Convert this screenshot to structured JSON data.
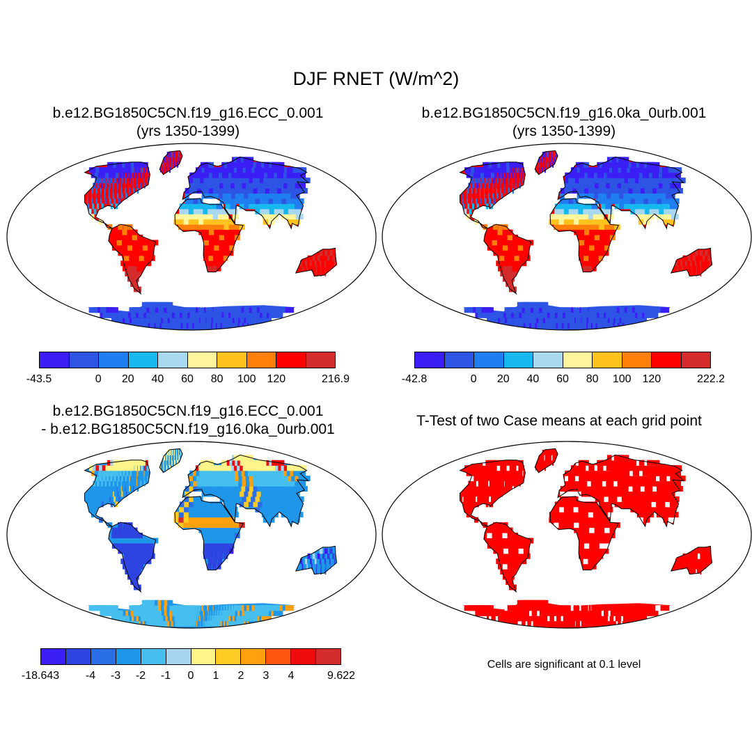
{
  "main_title": "DJF RNET (W/m^2)",
  "panels": [
    {
      "title_line1": "b.e12.BG1850C5CN.f19_g16.ECC_0.001",
      "title_line2": "(yrs 1350-1399)",
      "colorbar": {
        "colors": [
          "#3b1ef5",
          "#2d54e4",
          "#1f7ff0",
          "#17b8f0",
          "#a8d8f0",
          "#fff59c",
          "#ffc21e",
          "#ff7f0a",
          "#ff0000",
          "#d42c2c"
        ],
        "labels": [
          "-43.5",
          "0",
          "20",
          "40",
          "60",
          "80",
          "100",
          "120",
          "216.9"
        ]
      }
    },
    {
      "title_line1": "b.e12.BG1850C5CN.f19_g16.0ka_0urb.001",
      "title_line2": "(yrs 1350-1399)",
      "colorbar": {
        "colors": [
          "#3b1ef5",
          "#2d54e4",
          "#1f7ff0",
          "#17b8f0",
          "#a8d8f0",
          "#fff59c",
          "#ffc21e",
          "#ff7f0a",
          "#ff0000",
          "#d42c2c"
        ],
        "labels": [
          "-42.8",
          "0",
          "20",
          "40",
          "60",
          "80",
          "100",
          "120",
          "222.2"
        ]
      }
    },
    {
      "title_line1": "b.e12.BG1850C5CN.f19_g16.ECC_0.001",
      "title_line2": "- b.e12.BG1850C5CN.f19_g16.0ka_0urb.001",
      "colorbar": {
        "colors": [
          "#3b1ef5",
          "#2d44e0",
          "#2a6fe8",
          "#1e96ea",
          "#46bfee",
          "#a6d5f0",
          "#fff48a",
          "#ffcb25",
          "#ffa00f",
          "#ff5510",
          "#ee0b0b",
          "#d42c2c"
        ],
        "labels": [
          "-18.643",
          "-4",
          "-3",
          "-2",
          "-1",
          "0",
          "1",
          "2",
          "3",
          "4",
          "9.622"
        ]
      }
    },
    {
      "title_line1": "T-Test of two Case means at each grid point",
      "note": "Cells are significant at 0.1 level"
    }
  ]
}
